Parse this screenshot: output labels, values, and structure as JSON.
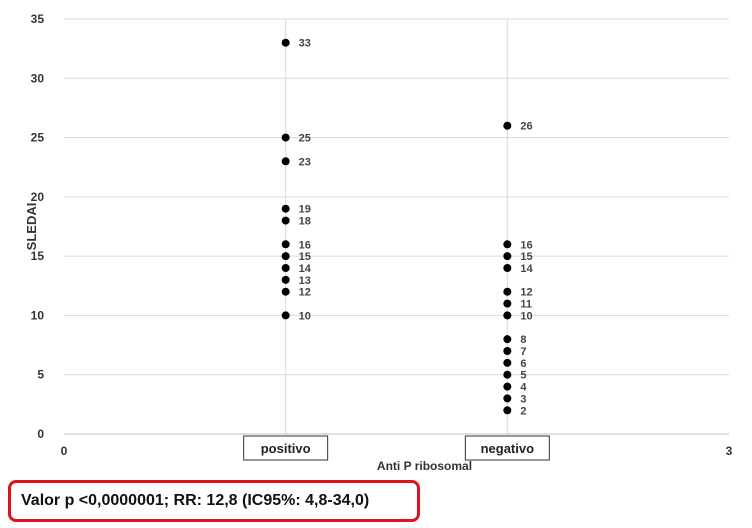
{
  "chart_data": {
    "type": "scatter",
    "title": "",
    "xlabel": "Anti P ribosomal",
    "ylabel": "SLEDAI",
    "xlim": [
      0,
      3
    ],
    "ylim": [
      0,
      35
    ],
    "yticks": [
      0,
      5,
      10,
      15,
      20,
      25,
      30,
      35
    ],
    "xtick_labels": [
      {
        "value": 0,
        "label": "0"
      },
      {
        "value": 3,
        "label": "3"
      }
    ],
    "categories": [
      {
        "x": 1,
        "label": "positivo"
      },
      {
        "x": 2,
        "label": "negativo"
      }
    ],
    "grid": true,
    "series": [
      {
        "category": "positivo",
        "x": 1,
        "values": [
          33,
          25,
          23,
          19,
          18,
          16,
          15,
          14,
          13,
          12,
          10
        ]
      },
      {
        "category": "negativo",
        "x": 2,
        "values": [
          26,
          16,
          15,
          14,
          12,
          11,
          10,
          8,
          7,
          6,
          5,
          4,
          3,
          2
        ]
      }
    ]
  },
  "stats": {
    "text": "Valor p <0,0000001; RR: 12,8 (IC95%: 4,8-34,0)"
  },
  "colors": {
    "point": "#000000",
    "grid": "#d9d9d9",
    "highlight_border": "#e0131c"
  }
}
